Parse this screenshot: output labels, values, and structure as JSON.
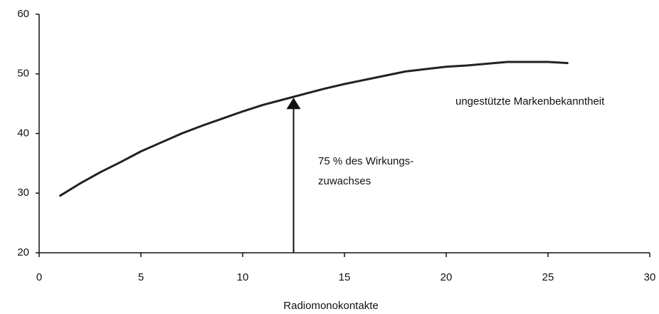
{
  "chart_data": {
    "type": "line",
    "x_label": "Radiomonokontakte",
    "x": [
      1,
      2,
      3,
      4,
      5,
      6,
      7,
      8,
      9,
      10,
      11,
      12,
      13,
      14,
      15,
      16,
      17,
      18,
      19,
      20,
      21,
      22,
      23,
      24,
      25,
      26
    ],
    "series": [
      {
        "name": "ungestützte Markenbekanntheit",
        "color": "#222222",
        "values": [
          29.5,
          31.6,
          33.5,
          35.2,
          37.0,
          38.5,
          40.0,
          41.3,
          42.5,
          43.7,
          44.8,
          45.7,
          46.6,
          47.5,
          48.3,
          49.0,
          49.7,
          50.4,
          50.8,
          51.2,
          51.4,
          51.7,
          52.0,
          52.0,
          52.0,
          51.8
        ]
      }
    ],
    "annotations": [
      {
        "lines": [
          "75 % des Wirkungs-",
          "zuwachses"
        ],
        "arrow_x": 12.5,
        "arrow_y": [
          20,
          46
        ]
      }
    ],
    "xlim": [
      0,
      30
    ],
    "xticks": [
      0,
      5,
      10,
      15,
      20,
      25,
      30
    ],
    "ylim": [
      20,
      60
    ],
    "yticks": [
      20,
      30,
      40,
      50,
      60
    ],
    "grid": false
  }
}
